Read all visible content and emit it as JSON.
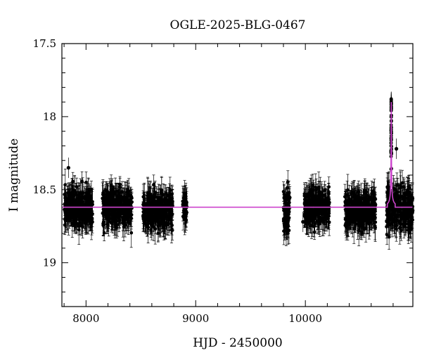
{
  "chart_data": {
    "type": "scatter",
    "title": "OGLE-2025-BLG-0467",
    "xlabel": "HJD - 2450000",
    "ylabel": "I magnitude",
    "xlim": [
      7780,
      10980
    ],
    "ylim": [
      17.5,
      19.3
    ],
    "y_inverted": true,
    "grid": false,
    "legend": "none",
    "x_ticks": [
      8000,
      9000,
      10000
    ],
    "x_tick_labels": [
      "8000",
      "9000",
      "10000"
    ],
    "y_ticks": [
      17.5,
      18,
      18.5,
      19
    ],
    "y_tick_labels": [
      "17.5",
      "18",
      "18.5",
      "19"
    ],
    "colors": {
      "points": "#000000",
      "model": "#cc44cc"
    },
    "baseline_magnitude": 18.62,
    "seasons": [
      {
        "x_range": [
          7800,
          8060
        ],
        "mag_mean": 18.62,
        "mag_scatter": 0.06
      },
      {
        "x_range": [
          8150,
          8420
        ],
        "mag_mean": 18.62,
        "mag_scatter": 0.06
      },
      {
        "x_range": [
          8520,
          8790
        ],
        "mag_mean": 18.64,
        "mag_scatter": 0.06
      },
      {
        "x_range": [
          8880,
          8920
        ],
        "mag_mean": 18.62,
        "mag_scatter": 0.05
      },
      {
        "x_range": [
          9800,
          9860
        ],
        "mag_mean": 18.65,
        "mag_scatter": 0.08
      },
      {
        "x_range": [
          9990,
          10220
        ],
        "mag_mean": 18.62,
        "mag_scatter": 0.06
      },
      {
        "x_range": [
          10360,
          10640
        ],
        "mag_mean": 18.64,
        "mag_scatter": 0.06
      },
      {
        "x_range": [
          10740,
          10980
        ],
        "mag_mean": 18.63,
        "mag_scatter": 0.07
      }
    ],
    "model": {
      "name": "",
      "baseline": 18.62,
      "peak_time": 10783,
      "peak_magnitude": 17.9,
      "width_days": 6
    },
    "outliers": [
      {
        "x": 10830,
        "y": 18.22
      },
      {
        "x": 9978,
        "y": 18.72
      },
      {
        "x": 7840,
        "y": 18.35
      }
    ]
  }
}
